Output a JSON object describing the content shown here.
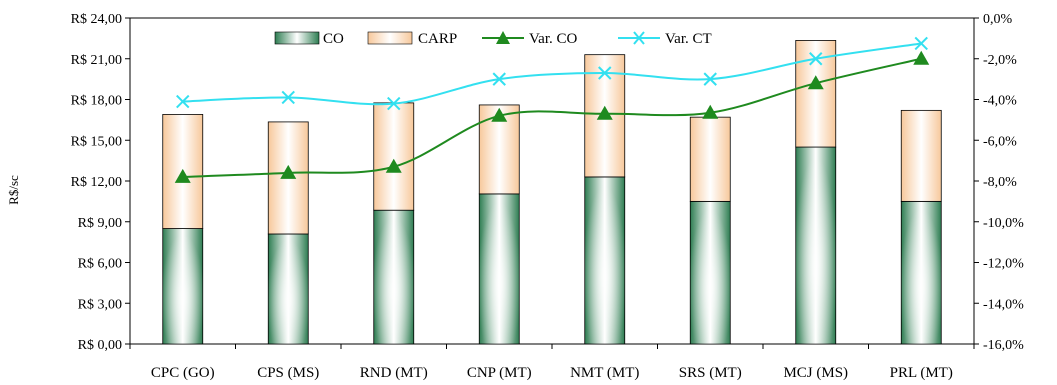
{
  "chart_data": {
    "type": "bar",
    "categories": [
      "CPC (GO)",
      "CPS (MS)",
      "RND (MT)",
      "CNP (MT)",
      "NMT (MT)",
      "SRS (MT)",
      "MCJ (MS)",
      "PRL (MT)"
    ],
    "series": [
      {
        "name": "CO",
        "kind": "stacked-bar",
        "axis": "left",
        "values": [
          8.5,
          8.1,
          9.85,
          11.05,
          12.3,
          10.5,
          14.5,
          10.5
        ]
      },
      {
        "name": "CARP",
        "kind": "stacked-bar",
        "axis": "left",
        "values": [
          8.4,
          8.25,
          7.9,
          6.55,
          9.0,
          6.2,
          7.85,
          6.7
        ]
      },
      {
        "name": "Var. CO",
        "kind": "line",
        "axis": "right",
        "values": [
          -7.8,
          -7.6,
          -7.3,
          -4.8,
          -4.7,
          -4.65,
          -3.2,
          -2.0
        ]
      },
      {
        "name": "Var. CT",
        "kind": "line",
        "axis": "right",
        "values": [
          -4.1,
          -3.9,
          -4.2,
          -3.0,
          -2.7,
          -3.0,
          -2.0,
          -1.25
        ]
      }
    ],
    "ylabel": "R$/sc",
    "ylim": [
      0,
      24
    ],
    "yticks": [
      "R$ 0,00",
      "R$ 3,00",
      "R$ 6,00",
      "R$ 9,00",
      "R$ 12,00",
      "R$ 15,00",
      "R$ 18,00",
      "R$ 21,00",
      "R$ 24,00"
    ],
    "y2lim": [
      -16,
      0
    ],
    "y2ticks": [
      "-16,0%",
      "-14,0%",
      "-12,0%",
      "-10,0%",
      "-8,0%",
      "-6,0%",
      "-4,0%",
      "-2,0%",
      "0,0%"
    ],
    "legend_position": "top-center",
    "colors": {
      "co_dark": "#2e7d52",
      "co_light": "#ffffff",
      "carp_dark": "#f7c89b",
      "carp_light": "#ffffff",
      "var_co": "#1f8a1f",
      "var_ct": "#33e0f0"
    }
  }
}
